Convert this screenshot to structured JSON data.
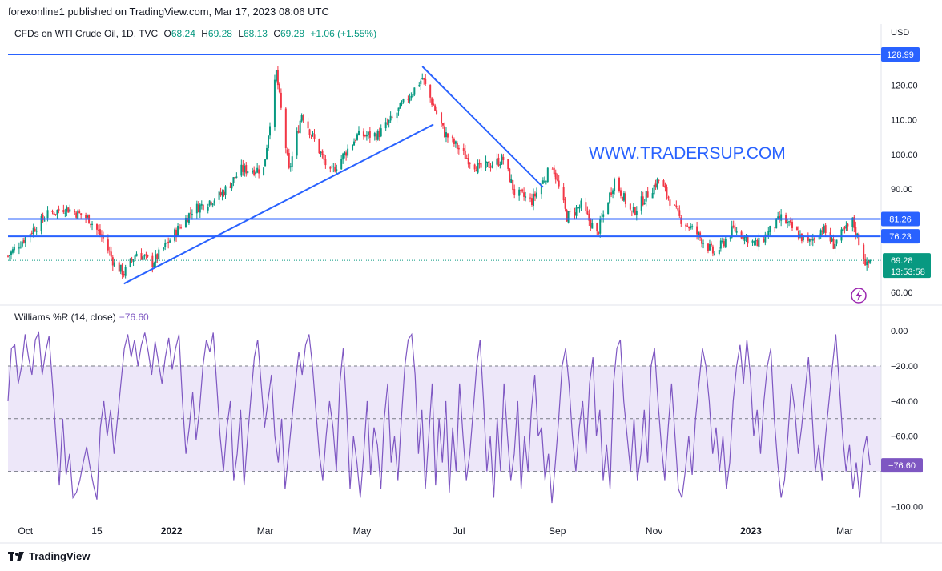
{
  "header": {
    "publisher": "forexonline1 published on TradingView.com, Mar 17, 2023 08:06 UTC"
  },
  "legend": {
    "symbol": "CFDs on WTI Crude Oil, 1D, TVC",
    "o_label": "O",
    "o_value": "68.24",
    "h_label": "H",
    "h_value": "69.28",
    "l_label": "L",
    "l_value": "68.13",
    "c_label": "C",
    "c_value": "69.28",
    "change": "+1.06 (+1.55%)"
  },
  "indicator": {
    "name": "Williams %R (14, close)",
    "value": "−76.60"
  },
  "watermark": "WWW.TRADERSUP.COM",
  "footer": {
    "brand": "TradingView"
  },
  "colors": {
    "up": "#089981",
    "down": "#f23645",
    "level_line": "#2962ff",
    "trendline": "#2962ff",
    "wr_line": "#7e57c2",
    "wr_band": "#ede7f9",
    "watermark": "#2962ff",
    "last_price_tag": "#089981"
  },
  "chart_data": [
    {
      "type": "candlestick",
      "currency": "USD",
      "y_ticks": [
        "60.00",
        "90.00",
        "100.00",
        "110.00",
        "120.00"
      ],
      "ylim": [
        57,
        132
      ],
      "x_ticks": [
        "Oct",
        "15",
        "2022",
        "Mar",
        "May",
        "Jul",
        "Sep",
        "Nov",
        "2023",
        "Mar"
      ],
      "close_path": [
        [
          "2021-09-20",
          70.5
        ],
        [
          "2021-10-01",
          76.0
        ],
        [
          "2021-10-15",
          82.5
        ],
        [
          "2021-10-26",
          84.6
        ],
        [
          "2021-11-10",
          81.3
        ],
        [
          "2021-11-19",
          75.5
        ],
        [
          "2021-11-26",
          68.2
        ],
        [
          "2021-12-02",
          65.6
        ],
        [
          "2021-12-10",
          71.5
        ],
        [
          "2021-12-20",
          68.5
        ],
        [
          "2021-12-31",
          75.2
        ],
        [
          "2022-01-14",
          83.8
        ],
        [
          "2022-02-01",
          88.2
        ],
        [
          "2022-02-14",
          95.5
        ],
        [
          "2022-02-28",
          95.7
        ],
        [
          "2022-03-08",
          123.7
        ],
        [
          "2022-03-16",
          95.0
        ],
        [
          "2022-03-24",
          112.0
        ],
        [
          "2022-04-11",
          94.3
        ],
        [
          "2022-04-28",
          105.4
        ],
        [
          "2022-05-11",
          105.7
        ],
        [
          "2022-05-20",
          110.3
        ],
        [
          "2022-06-08",
          122.1
        ],
        [
          "2022-06-22",
          106.2
        ],
        [
          "2022-07-05",
          99.5
        ],
        [
          "2022-07-14",
          95.8
        ],
        [
          "2022-07-29",
          98.6
        ],
        [
          "2022-08-05",
          89.0
        ],
        [
          "2022-08-16",
          86.5
        ],
        [
          "2022-08-29",
          97.0
        ],
        [
          "2022-09-07",
          81.9
        ],
        [
          "2022-09-16",
          85.1
        ],
        [
          "2022-09-26",
          76.7
        ],
        [
          "2022-10-07",
          92.6
        ],
        [
          "2022-10-18",
          82.8
        ],
        [
          "2022-11-04",
          92.6
        ],
        [
          "2022-11-17",
          81.6
        ],
        [
          "2022-11-28",
          77.0
        ],
        [
          "2022-12-09",
          71.0
        ],
        [
          "2022-12-21",
          78.3
        ],
        [
          "2023-01-05",
          73.7
        ],
        [
          "2023-01-20",
          81.6
        ],
        [
          "2023-02-06",
          74.1
        ],
        [
          "2023-02-15",
          78.6
        ],
        [
          "2023-02-22",
          73.9
        ],
        [
          "2023-03-06",
          80.5
        ],
        [
          "2023-03-15",
          67.6
        ],
        [
          "2023-03-17",
          69.28
        ]
      ],
      "horizontal_levels": [
        {
          "label": "128.99",
          "value": 128.99
        },
        {
          "label": "81.26",
          "value": 81.26
        },
        {
          "label": "76.23",
          "value": 76.23
        }
      ],
      "last_price": {
        "value": 69.28,
        "label": "69.28",
        "countdown": "13:53:58"
      },
      "trendlines": [
        {
          "from": [
            "2021-12-02",
            62.5
          ],
          "to": [
            "2022-06-15",
            108.7
          ]
        },
        {
          "from": [
            "2022-06-08",
            125.5
          ],
          "to": [
            "2022-08-23",
            90.5
          ]
        }
      ]
    },
    {
      "type": "line",
      "name": "Williams %R (14, close)",
      "y_ticks": [
        "0.00",
        "−20.00",
        "−40.00",
        "−60.00",
        "−100.00"
      ],
      "ylim": [
        -108,
        6
      ],
      "band": [
        -20,
        -80
      ],
      "last_value_label": "−76.60",
      "values": [
        -40,
        -10,
        -8,
        -30,
        -20,
        -2,
        -15,
        -25,
        -5,
        -1,
        -25,
        -12,
        -3,
        -30,
        -60,
        -88,
        -50,
        -82,
        -70,
        -95,
        -92,
        -85,
        -75,
        -66,
        -78,
        -88,
        -96,
        -55,
        -40,
        -60,
        -45,
        -70,
        -50,
        -30,
        -10,
        -2,
        -15,
        -5,
        -20,
        -8,
        -1,
        -12,
        -25,
        -6,
        -18,
        -30,
        -15,
        -4,
        -22,
        -10,
        -2,
        -40,
        -70,
        -55,
        -35,
        -62,
        -45,
        -20,
        -5,
        -12,
        -1,
        -30,
        -60,
        -80,
        -55,
        -40,
        -85,
        -70,
        -45,
        -88,
        -62,
        -38,
        -15,
        -5,
        -30,
        -55,
        -40,
        -25,
        -60,
        -75,
        -50,
        -90,
        -70,
        -50,
        -30,
        -12,
        -25,
        -8,
        -2,
        -20,
        -45,
        -70,
        -85,
        -60,
        -40,
        -55,
        -80,
        -30,
        -10,
        -45,
        -90,
        -60,
        -75,
        -95,
        -70,
        -40,
        -82,
        -55,
        -65,
        -90,
        -50,
        -30,
        -75,
        -60,
        -85,
        -50,
        -20,
        -5,
        -2,
        -25,
        -70,
        -45,
        -90,
        -60,
        -30,
        -88,
        -50,
        -75,
        -40,
        -92,
        -55,
        -80,
        -30,
        -60,
        -85,
        -70,
        -45,
        -20,
        -5,
        -40,
        -80,
        -60,
        -95,
        -50,
        -80,
        -30,
        -60,
        -85,
        -70,
        -40,
        -90,
        -60,
        -80,
        -45,
        -25,
        -60,
        -55,
        -85,
        -70,
        -98,
        -75,
        -50,
        -20,
        -10,
        -30,
        -60,
        -80,
        -55,
        -40,
        -70,
        -30,
        -15,
        -60,
        -45,
        -85,
        -65,
        -90,
        -30,
        -10,
        -5,
        -40,
        -60,
        -80,
        -50,
        -85,
        -70,
        -45,
        -75,
        -20,
        -10,
        -40,
        -65,
        -85,
        -55,
        -30,
        -60,
        -90,
        -95,
        -80,
        -60,
        -82,
        -50,
        -30,
        -10,
        -20,
        -40,
        -70,
        -55,
        -80,
        -60,
        -90,
        -75,
        -40,
        -20,
        -8,
        -30,
        -5,
        -25,
        -60,
        -45,
        -70,
        -40,
        -20,
        -10,
        -50,
        -75,
        -95,
        -85,
        -60,
        -30,
        -45,
        -70,
        -55,
        -35,
        -15,
        -45,
        -80,
        -65,
        -85,
        -60,
        -40,
        -20,
        -2,
        -30,
        -60,
        -80,
        -65,
        -90,
        -75,
        -95,
        -70,
        -60,
        -76.6
      ]
    }
  ]
}
